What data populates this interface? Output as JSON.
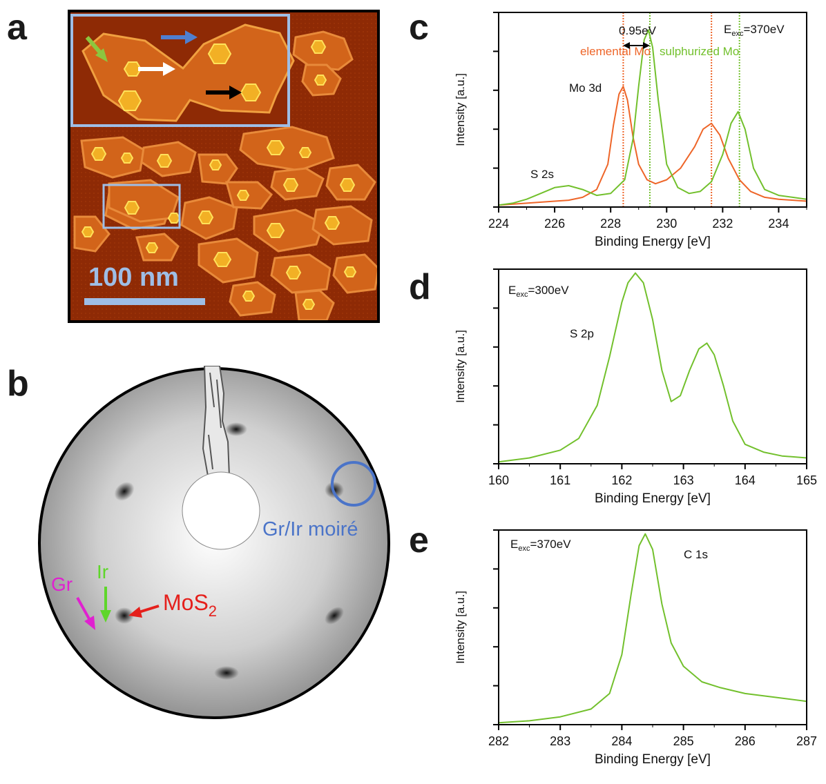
{
  "panels": {
    "a": {
      "letter": "a",
      "scale_bar_label": "100 nm",
      "colors": {
        "substrate": "#8e2a05",
        "island": "#d2641a",
        "bilayer": "#f2b025",
        "frame": "#9ebee6",
        "arrow_green": "#8cc63f",
        "arrow_blue": "#4f7fd0",
        "arrow_white": "#ffffff",
        "arrow_black": "#000000"
      }
    },
    "b": {
      "letter": "b",
      "labels": {
        "moire": "Gr/Ir moiré",
        "gr": "Gr",
        "ir": "Ir",
        "mos2": "MoS",
        "mos2_sub": "2"
      },
      "colors": {
        "moire": "#4b74c8",
        "gr": "#e020d0",
        "ir": "#5ed62a",
        "mos2": "#e5201c"
      }
    },
    "c": {
      "letter": "c",
      "annotations": {
        "separation": "0.95eV",
        "elemental": "elemental Mo",
        "sulphurized": "sulphurized Mo",
        "eexc_E": "E",
        "eexc_sub": "exc",
        "eexc_val": "=370eV",
        "peak_label": "Mo 3d",
        "s2s_label": "S 2s"
      }
    },
    "d": {
      "letter": "d",
      "annotations": {
        "eexc_E": "E",
        "eexc_sub": "exc",
        "eexc_val": "=300eV",
        "peak_label": "S 2p"
      }
    },
    "e": {
      "letter": "e",
      "annotations": {
        "eexc_E": "E",
        "eexc_sub": "exc",
        "eexc_val": "=370eV",
        "peak_label": "C 1s"
      }
    }
  },
  "chart_data": [
    {
      "id": "c",
      "type": "line",
      "xlabel": "Binding Energy [eV]",
      "ylabel": "Intensity [a.u.]",
      "xlim": [
        224,
        235
      ],
      "ylim": [
        0,
        1
      ],
      "xticks": [
        224,
        226,
        228,
        230,
        232,
        234
      ],
      "xtick_labels": [
        "224",
        "226",
        "228",
        "230",
        "232",
        "234"
      ],
      "series": [
        {
          "name": "elemental Mo",
          "color": "#ee6528",
          "x": [
            224.0,
            225.0,
            226.0,
            226.5,
            227.0,
            227.5,
            227.9,
            228.1,
            228.3,
            228.45,
            228.6,
            228.8,
            229.0,
            229.3,
            229.6,
            230.0,
            230.5,
            231.0,
            231.3,
            231.6,
            231.9,
            232.2,
            232.6,
            233.0,
            233.5,
            234.0,
            235.0
          ],
          "y": [
            0.01,
            0.02,
            0.03,
            0.035,
            0.05,
            0.09,
            0.22,
            0.42,
            0.58,
            0.62,
            0.55,
            0.36,
            0.22,
            0.14,
            0.12,
            0.14,
            0.2,
            0.31,
            0.4,
            0.43,
            0.37,
            0.25,
            0.14,
            0.08,
            0.05,
            0.04,
            0.03
          ]
        },
        {
          "name": "sulphurized Mo",
          "color": "#72c02c",
          "x": [
            224.0,
            224.5,
            225.0,
            225.5,
            226.0,
            226.5,
            227.0,
            227.5,
            228.0,
            228.5,
            228.8,
            229.0,
            229.2,
            229.35,
            229.5,
            229.7,
            230.0,
            230.4,
            230.8,
            231.2,
            231.6,
            232.0,
            232.3,
            232.55,
            232.8,
            233.1,
            233.5,
            234.0,
            234.5,
            235.0
          ],
          "y": [
            0.01,
            0.02,
            0.04,
            0.07,
            0.1,
            0.11,
            0.09,
            0.06,
            0.07,
            0.14,
            0.35,
            0.62,
            0.86,
            0.91,
            0.82,
            0.55,
            0.22,
            0.1,
            0.07,
            0.08,
            0.13,
            0.27,
            0.43,
            0.49,
            0.4,
            0.2,
            0.09,
            0.06,
            0.05,
            0.04
          ]
        }
      ],
      "vlines": [
        {
          "x": 228.45,
          "color": "#ee6528"
        },
        {
          "x": 229.4,
          "color": "#72c02c"
        },
        {
          "x": 231.6,
          "color": "#ee6528"
        },
        {
          "x": 232.6,
          "color": "#72c02c"
        }
      ]
    },
    {
      "id": "d",
      "type": "line",
      "xlabel": "Binding Energy [eV]",
      "ylabel": "Intensity [a.u.]",
      "xlim": [
        160,
        165
      ],
      "ylim": [
        0,
        1
      ],
      "xticks": [
        160,
        161,
        162,
        163,
        164,
        165
      ],
      "xtick_labels": [
        "160",
        "161",
        "162",
        "163",
        "164",
        "165"
      ],
      "series": [
        {
          "name": "S 2p",
          "color": "#72c02c",
          "x": [
            160.0,
            160.5,
            161.0,
            161.3,
            161.6,
            161.8,
            162.0,
            162.1,
            162.22,
            162.35,
            162.5,
            162.65,
            162.8,
            162.95,
            163.1,
            163.25,
            163.38,
            163.5,
            163.65,
            163.8,
            164.0,
            164.3,
            164.6,
            165.0
          ],
          "y": [
            0.01,
            0.03,
            0.07,
            0.13,
            0.3,
            0.55,
            0.83,
            0.93,
            0.98,
            0.93,
            0.74,
            0.48,
            0.32,
            0.35,
            0.48,
            0.59,
            0.62,
            0.56,
            0.4,
            0.22,
            0.1,
            0.06,
            0.04,
            0.03
          ]
        }
      ]
    },
    {
      "id": "e",
      "type": "line",
      "xlabel": "Binding Energy [eV]",
      "ylabel": "Intensity [a.u.]",
      "xlim": [
        282,
        287
      ],
      "ylim": [
        0,
        1
      ],
      "xticks": [
        282,
        283,
        284,
        285,
        286,
        287
      ],
      "xtick_labels": [
        "282",
        "283",
        "284",
        "285",
        "286",
        "287"
      ],
      "series": [
        {
          "name": "C 1s",
          "color": "#72c02c",
          "x": [
            282.0,
            282.5,
            283.0,
            283.5,
            283.8,
            284.0,
            284.15,
            284.28,
            284.38,
            284.5,
            284.65,
            284.8,
            285.0,
            285.3,
            285.6,
            286.0,
            286.5,
            287.0
          ],
          "y": [
            0.01,
            0.02,
            0.04,
            0.08,
            0.16,
            0.36,
            0.67,
            0.92,
            0.98,
            0.9,
            0.62,
            0.42,
            0.3,
            0.22,
            0.19,
            0.16,
            0.14,
            0.12
          ]
        }
      ]
    }
  ]
}
